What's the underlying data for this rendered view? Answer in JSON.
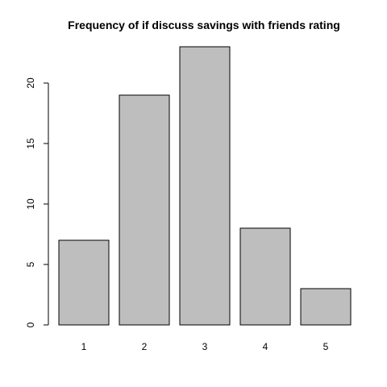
{
  "chart_data": {
    "type": "bar",
    "title": "Frequency of if discuss savings with friends rating",
    "xlabel": "",
    "ylabel": "",
    "categories": [
      "1",
      "2",
      "3",
      "4",
      "5"
    ],
    "values": [
      7,
      19,
      23,
      8,
      3
    ],
    "yticks": [
      0,
      5,
      10,
      15,
      20
    ],
    "ylim": [
      0,
      23
    ],
    "bar_color": "#bebebe",
    "border_color": "#000000",
    "grid": false
  }
}
